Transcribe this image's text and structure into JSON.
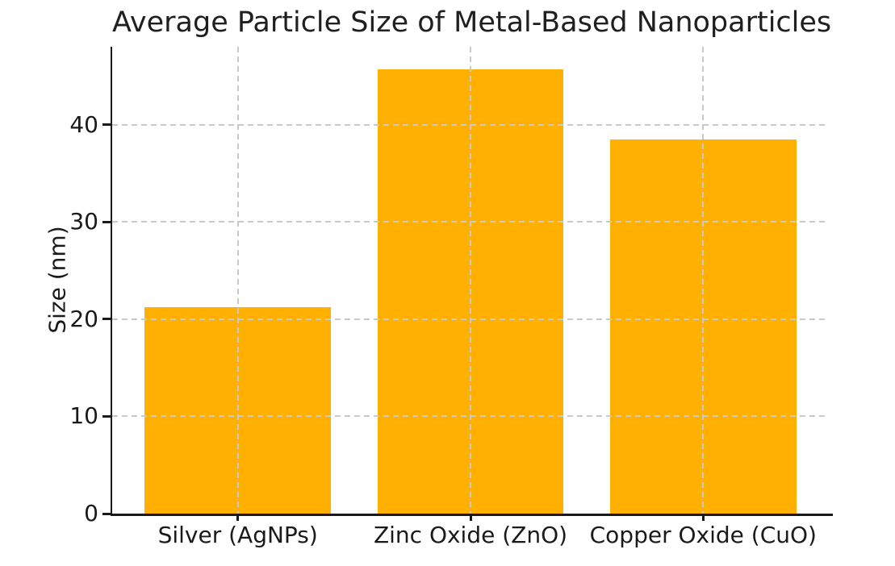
{
  "chart_data": {
    "type": "bar",
    "title": "Average Particle Size of Metal-Based Nanoparticles",
    "ylabel": "Size (nm)",
    "xlabel": "",
    "categories": [
      "Silver (AgNPs)",
      "Zinc Oxide (ZnO)",
      "Copper Oxide (CuO)"
    ],
    "values": [
      21.2,
      45.7,
      38.5
    ],
    "yticks": [
      0,
      10,
      20,
      30,
      40
    ],
    "ylim": [
      0,
      48
    ],
    "bar_color": "#FFB000",
    "grid": true,
    "grid_style": "dashed",
    "grid_color": "#c9c9c9",
    "axis_color": "#1a1a1a",
    "text_color": "#1a1a1a",
    "background_color": "#ffffff",
    "legend": "none"
  }
}
